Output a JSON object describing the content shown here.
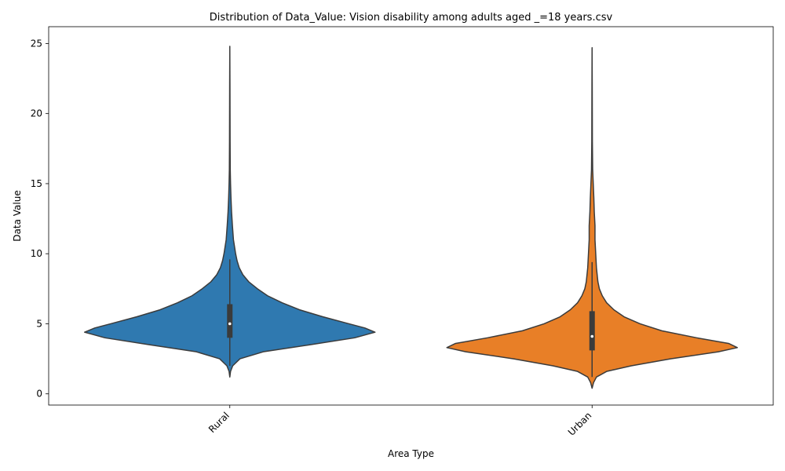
{
  "chart_data": {
    "type": "violin",
    "title": "Distribution of Data_Value: Vision disability among adults aged _=18 years.csv",
    "xlabel": "Area Type",
    "ylabel": "Data Value",
    "ylim": [
      -0.8,
      26.2
    ],
    "yticks": [
      0,
      5,
      10,
      15,
      20,
      25
    ],
    "grid": false,
    "legend": "none",
    "categories": [
      "Rural",
      "Urban"
    ],
    "series": [
      {
        "category": "Rural",
        "color": "#2f79b0",
        "min": 1.2,
        "q1": 4.0,
        "median": 5.0,
        "q3": 6.4,
        "whisker_low": 2.0,
        "whisker_high": 9.6,
        "max": 24.8,
        "density_profile": [
          [
            1.2,
            0.0
          ],
          [
            1.6,
            0.005
          ],
          [
            2.0,
            0.02
          ],
          [
            2.5,
            0.07
          ],
          [
            3.0,
            0.23
          ],
          [
            3.5,
            0.55
          ],
          [
            4.0,
            0.86
          ],
          [
            4.4,
            1.0
          ],
          [
            4.7,
            0.93
          ],
          [
            5.0,
            0.82
          ],
          [
            5.5,
            0.64
          ],
          [
            6.0,
            0.48
          ],
          [
            6.5,
            0.36
          ],
          [
            7.0,
            0.26
          ],
          [
            7.5,
            0.19
          ],
          [
            8.0,
            0.13
          ],
          [
            8.5,
            0.09
          ],
          [
            9.0,
            0.065
          ],
          [
            9.5,
            0.05
          ],
          [
            10.0,
            0.04
          ],
          [
            11.0,
            0.025
          ],
          [
            12.0,
            0.018
          ],
          [
            13.0,
            0.012
          ],
          [
            14.0,
            0.008
          ],
          [
            15.0,
            0.005
          ],
          [
            16.0,
            0.003
          ],
          [
            18.0,
            0.002
          ],
          [
            20.0,
            0.0015
          ],
          [
            22.0,
            0.001
          ],
          [
            24.8,
            0.0
          ]
        ]
      },
      {
        "category": "Urban",
        "color": "#e87f27",
        "min": 0.4,
        "q1": 3.1,
        "median": 4.1,
        "q3": 5.9,
        "whisker_low": 1.2,
        "whisker_high": 9.4,
        "max": 24.7,
        "density_profile": [
          [
            0.4,
            0.0
          ],
          [
            0.8,
            0.01
          ],
          [
            1.2,
            0.03
          ],
          [
            1.6,
            0.1
          ],
          [
            2.0,
            0.27
          ],
          [
            2.5,
            0.54
          ],
          [
            3.0,
            0.87
          ],
          [
            3.3,
            1.0
          ],
          [
            3.6,
            0.94
          ],
          [
            4.0,
            0.72
          ],
          [
            4.5,
            0.48
          ],
          [
            5.0,
            0.33
          ],
          [
            5.5,
            0.22
          ],
          [
            6.0,
            0.15
          ],
          [
            6.5,
            0.1
          ],
          [
            7.0,
            0.07
          ],
          [
            7.5,
            0.05
          ],
          [
            8.0,
            0.04
          ],
          [
            9.0,
            0.03
          ],
          [
            10.0,
            0.025
          ],
          [
            11.0,
            0.02
          ],
          [
            12.0,
            0.02
          ],
          [
            13.0,
            0.015
          ],
          [
            14.0,
            0.012
          ],
          [
            15.0,
            0.008
          ],
          [
            16.0,
            0.004
          ],
          [
            18.0,
            0.002
          ],
          [
            20.0,
            0.0015
          ],
          [
            22.0,
            0.001
          ],
          [
            24.7,
            0.0
          ]
        ]
      }
    ]
  }
}
